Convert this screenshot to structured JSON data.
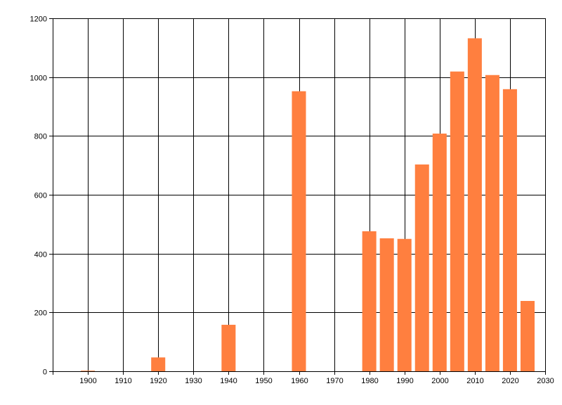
{
  "chart_data": {
    "type": "bar",
    "title": "",
    "xlabel": "",
    "ylabel": "",
    "xlim": [
      1890,
      2030
    ],
    "ylim": [
      0,
      1200
    ],
    "grid": true,
    "x_ticks": [
      1900,
      1910,
      1920,
      1930,
      1940,
      1950,
      1960,
      1970,
      1980,
      1990,
      2000,
      2010,
      2020,
      2030
    ],
    "y_ticks": [
      0,
      200,
      400,
      600,
      800,
      1000,
      1200
    ],
    "bar_width_years": 4,
    "bar_color": "#ff7f3f",
    "series": [
      {
        "x": [
          1900,
          1920,
          1940,
          1960,
          1980,
          1985,
          1990,
          1995,
          2000,
          2005,
          2010,
          2015,
          2020,
          2025
        ],
        "values": [
          2,
          47,
          158,
          952,
          476,
          452,
          450,
          703,
          808,
          1019,
          1132,
          1007,
          959,
          239
        ]
      }
    ]
  }
}
